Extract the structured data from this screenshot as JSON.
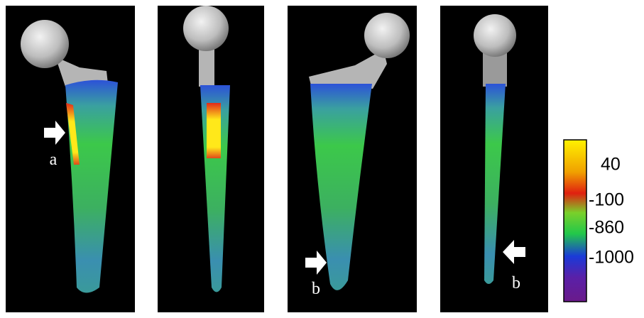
{
  "annotations": {
    "labels": [
      "a",
      "b",
      "b"
    ]
  },
  "colorbar": {
    "ticks": [
      40,
      -100,
      -860,
      -1000
    ]
  }
}
